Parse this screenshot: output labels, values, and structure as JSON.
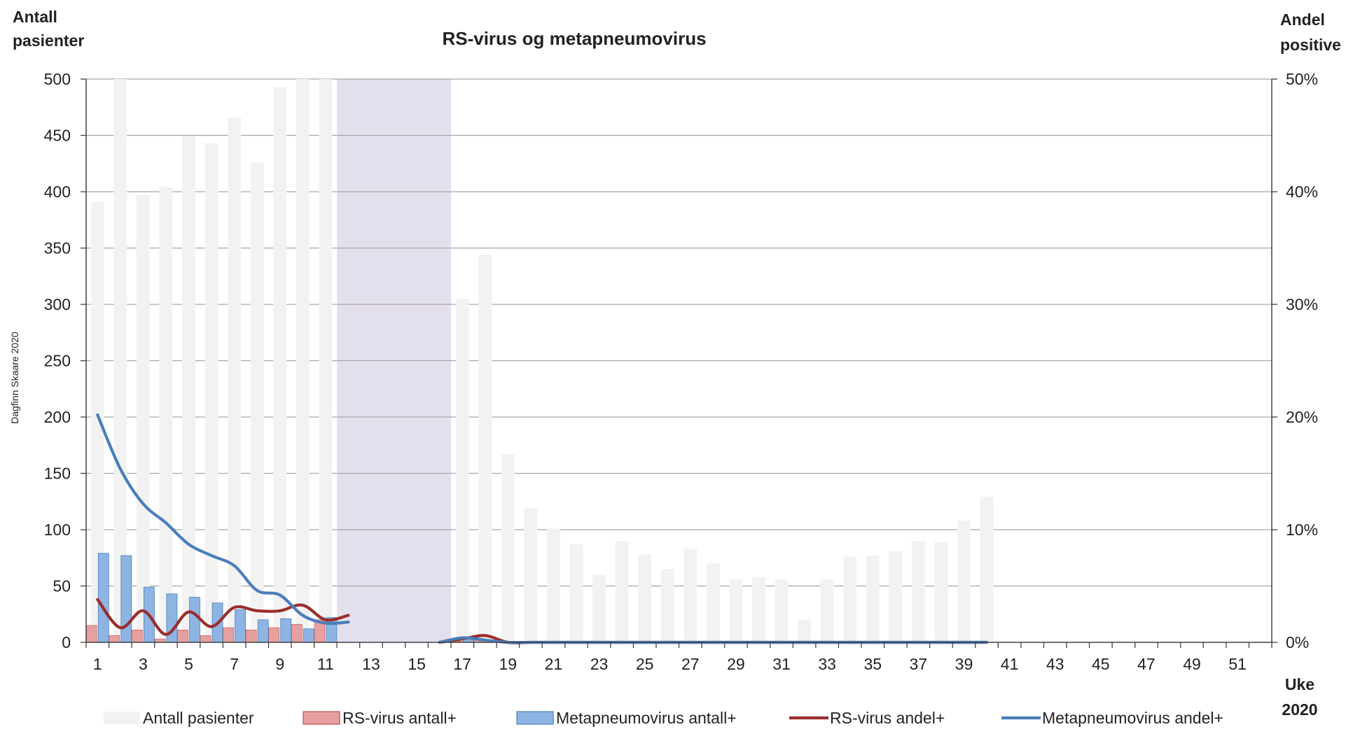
{
  "chart_data": {
    "type": "bar",
    "title": "RS-virus og metapneumovirus",
    "y_left_label_line1": "Antall",
    "y_left_label_line2": "pasienter",
    "y_right_label_line1": "Andel",
    "y_right_label_line2": "positive",
    "x_label_line1": "Uke",
    "x_label_line2": "2020",
    "credit": "Dagfinn Skaare 2020",
    "y_left_ticks": [
      "0",
      "50",
      "100",
      "150",
      "200",
      "250",
      "300",
      "350",
      "400",
      "450",
      "500"
    ],
    "y_right_ticks": [
      "0%",
      "10%",
      "20%",
      "30%",
      "40%",
      "50%"
    ],
    "ylim_left": [
      0,
      500
    ],
    "ylim_right": [
      0,
      0.5
    ],
    "grid": true,
    "legend_position": "bottom",
    "shaded_weeks": [
      12,
      16
    ],
    "x_tick_labels": [
      "1",
      "3",
      "5",
      "7",
      "9",
      "11",
      "13",
      "15",
      "17",
      "19",
      "21",
      "23",
      "25",
      "27",
      "29",
      "31",
      "33",
      "35",
      "37",
      "39",
      "41",
      "43",
      "45",
      "47",
      "49",
      "51"
    ],
    "weeks": [
      1,
      2,
      3,
      4,
      5,
      6,
      7,
      8,
      9,
      10,
      11,
      12,
      13,
      14,
      15,
      16,
      17,
      18,
      19,
      20,
      21,
      22,
      23,
      24,
      25,
      26,
      27,
      28,
      29,
      30,
      31,
      32,
      33,
      34,
      35,
      36,
      37,
      38,
      39,
      40,
      41,
      42,
      43,
      44,
      45,
      46,
      47,
      48,
      49,
      50,
      51,
      52
    ],
    "series": [
      {
        "name": "Antall pasienter",
        "kind": "bar",
        "axis": "left",
        "color": "#f2f2f2",
        "values": [
          391,
          500,
          397,
          404,
          449,
          443,
          466,
          426,
          493,
          500,
          500,
          null,
          null,
          null,
          null,
          null,
          305,
          344,
          167,
          119,
          101,
          87,
          60,
          90,
          78,
          65,
          83,
          70,
          56,
          58,
          56,
          20,
          56,
          76,
          77,
          81,
          90,
          89,
          108,
          129,
          null,
          null,
          null,
          null,
          null,
          null,
          null,
          null,
          null,
          null,
          null,
          null
        ]
      },
      {
        "name": "RS-virus antall+",
        "kind": "bar",
        "axis": "left",
        "color": "#e6a0a0",
        "values": [
          15,
          6,
          11,
          3,
          11,
          6,
          13,
          11,
          13,
          16,
          20,
          null,
          null,
          null,
          null,
          null,
          1,
          2,
          0,
          0,
          0,
          0,
          0,
          0,
          0,
          0,
          0,
          0,
          0,
          0,
          0,
          0,
          0,
          0,
          0,
          0,
          0,
          0,
          0,
          0,
          null,
          null,
          null,
          null,
          null,
          null,
          null,
          null,
          null,
          null,
          null,
          null
        ]
      },
      {
        "name": "Metapneumovirus antall+",
        "kind": "bar",
        "axis": "left",
        "color": "#8db4e2",
        "values": [
          79,
          77,
          49,
          43,
          40,
          35,
          29,
          20,
          21,
          12,
          22,
          null,
          null,
          null,
          null,
          null,
          4,
          2,
          0,
          0,
          0,
          0,
          0,
          0,
          0,
          0,
          0,
          0,
          0,
          0,
          0,
          0,
          0,
          0,
          0,
          0,
          0,
          0,
          0,
          0,
          null,
          null,
          null,
          null,
          null,
          null,
          null,
          null,
          null,
          null,
          null,
          null
        ]
      },
      {
        "name": "RS-virus andel+",
        "kind": "line",
        "axis": "right",
        "color": "#9b2d2d",
        "values": [
          0.038,
          0.013,
          0.028,
          0.007,
          0.027,
          0.014,
          0.031,
          0.028,
          0.028,
          0.033,
          0.02,
          0.024,
          null,
          null,
          null,
          0.0,
          0.003,
          0.006,
          0,
          0,
          0,
          0,
          0,
          0,
          0,
          0,
          0,
          0,
          0,
          0,
          0,
          0,
          0,
          0,
          0,
          0,
          0,
          0,
          0,
          0,
          null,
          null,
          null,
          null,
          null,
          null,
          null,
          null,
          null,
          null,
          null,
          null
        ]
      },
      {
        "name": "Metapneumovirus andel+",
        "kind": "line",
        "axis": "right",
        "color": "#4a7ebb",
        "values": [
          0.202,
          0.154,
          0.123,
          0.106,
          0.087,
          0.077,
          0.068,
          0.046,
          0.042,
          0.024,
          0.017,
          0.018,
          null,
          null,
          null,
          0.0,
          0.004,
          0.002,
          0,
          0,
          0,
          0,
          0,
          0,
          0,
          0,
          0,
          0,
          0,
          0,
          0,
          0,
          0,
          0,
          0,
          0,
          0,
          0,
          0,
          0,
          null,
          null,
          null,
          null,
          null,
          null,
          null,
          null,
          null,
          null,
          null,
          null
        ]
      }
    ]
  }
}
